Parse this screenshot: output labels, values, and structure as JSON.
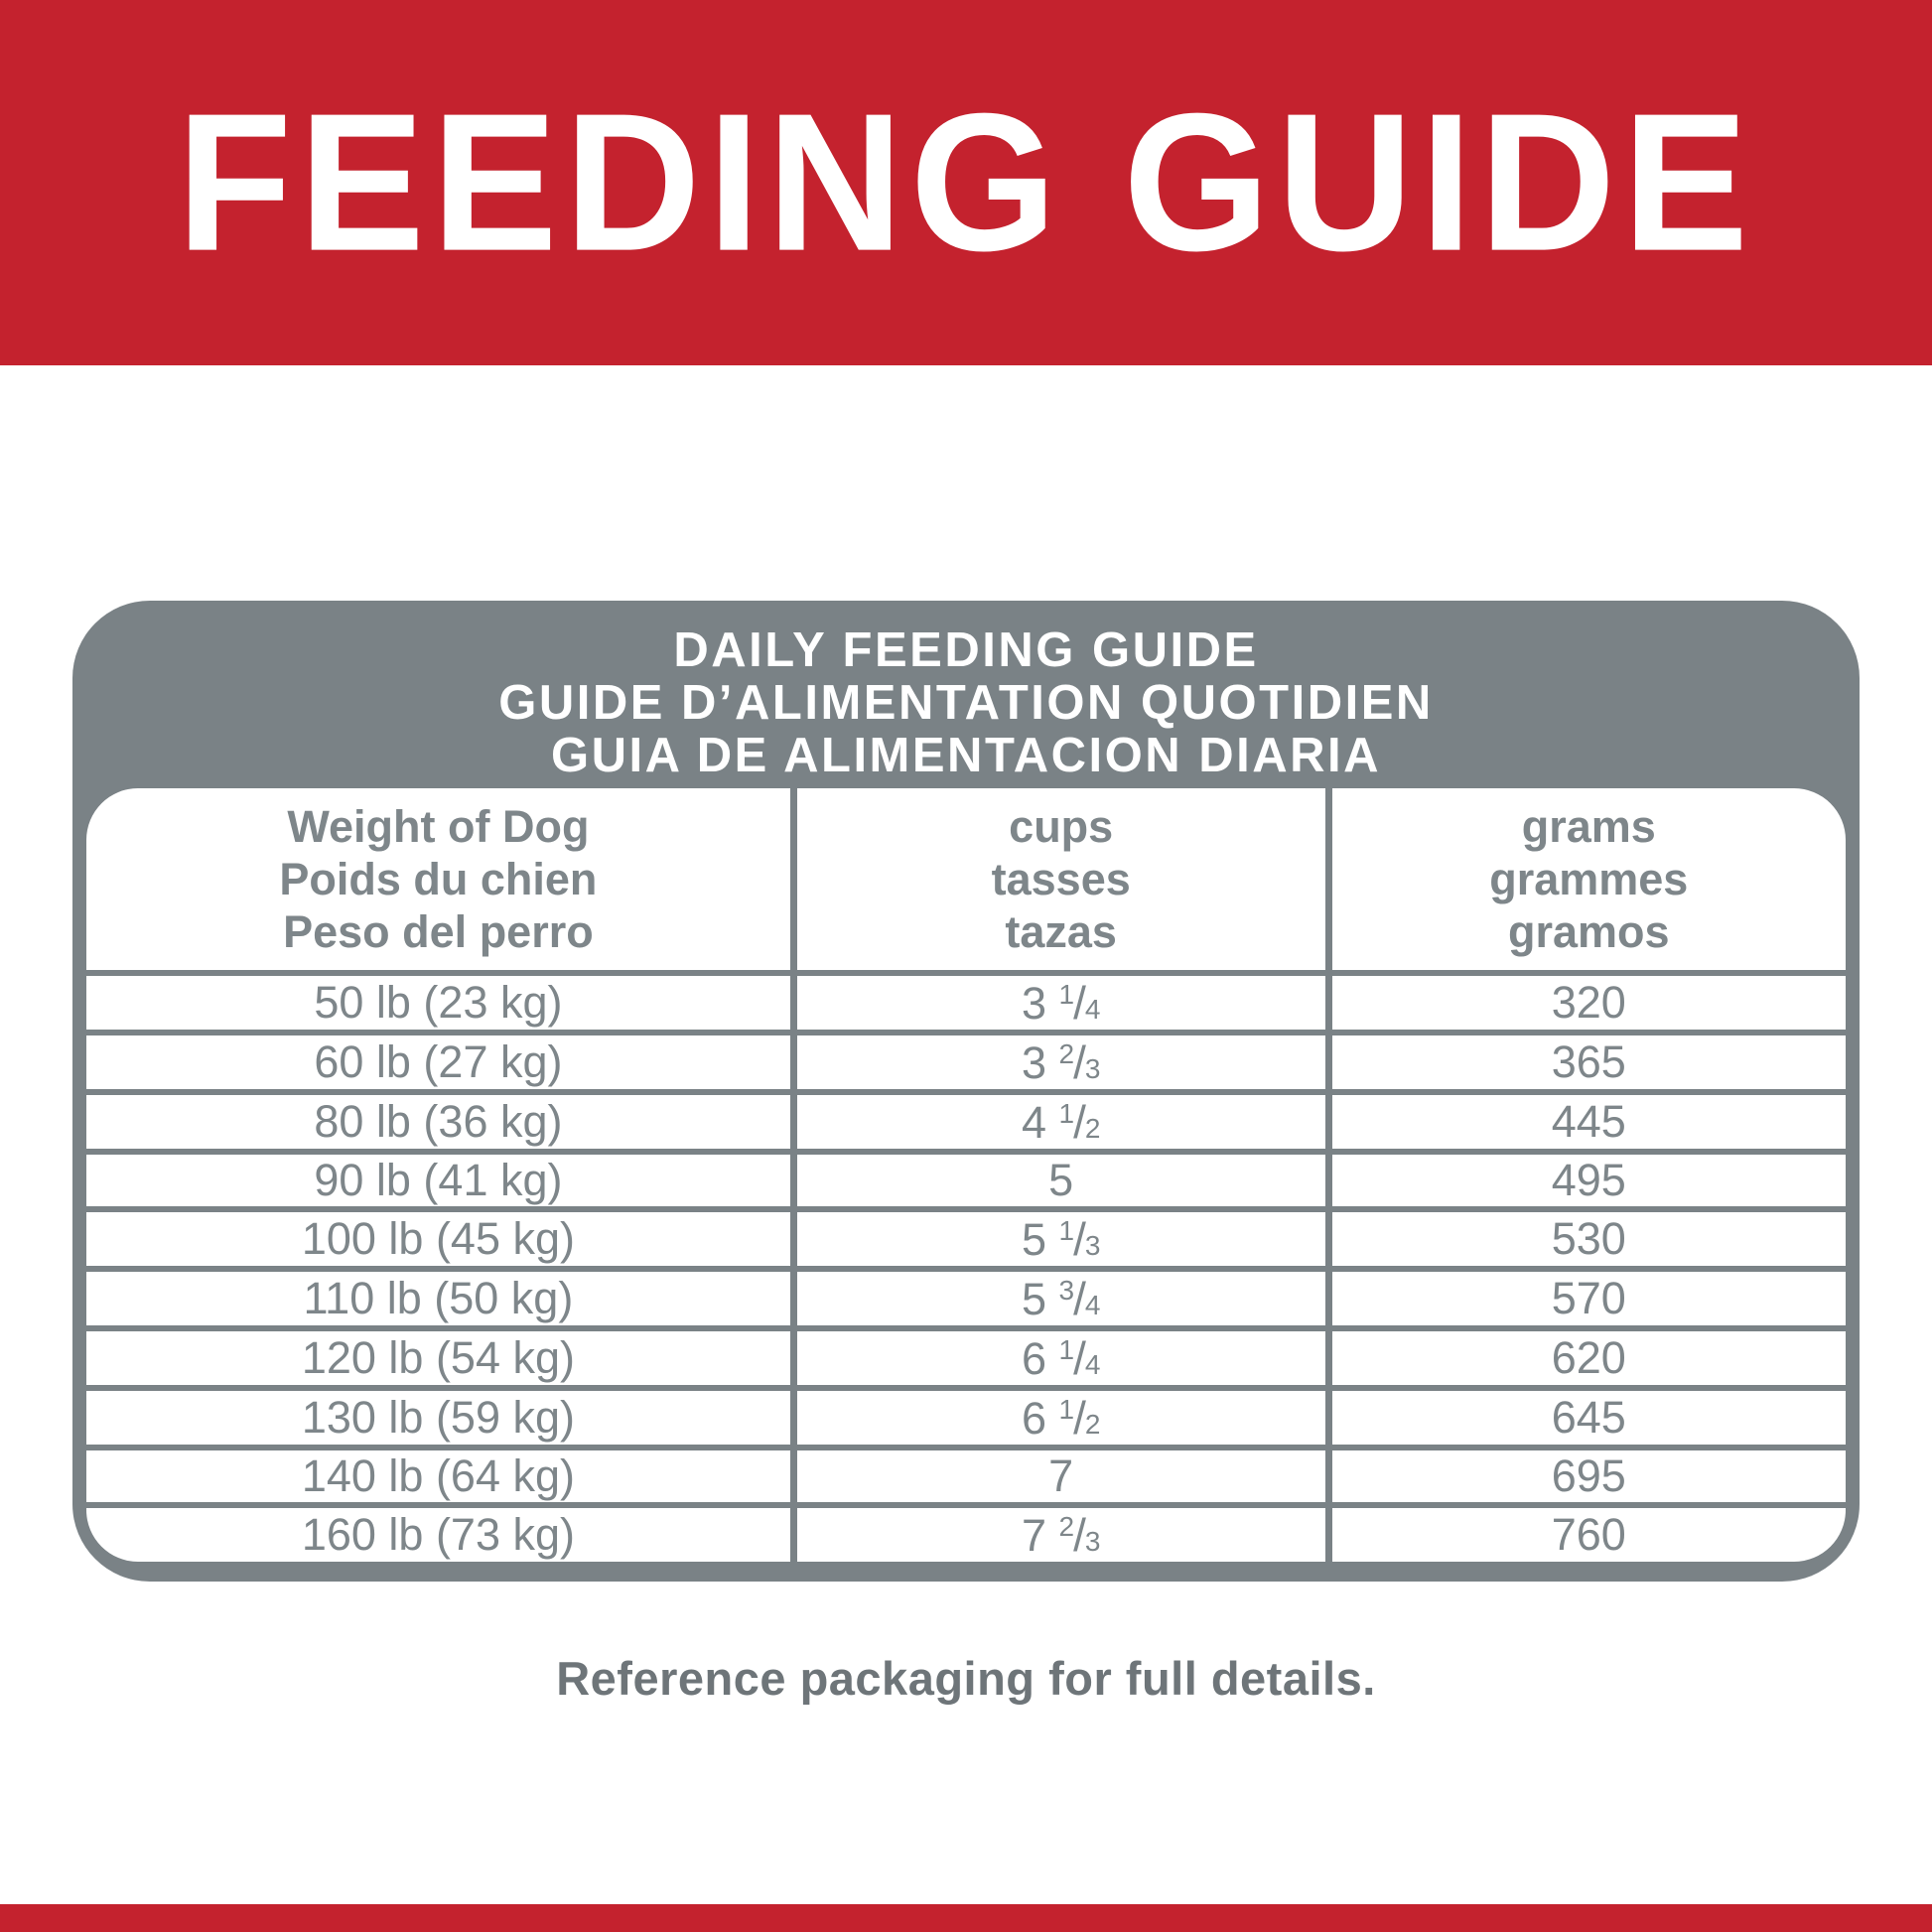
{
  "banner": {
    "title": "FEEDING GUIDE"
  },
  "card": {
    "title_lines": [
      "DAILY FEEDING GUIDE",
      "GUIDE D’ALIMENTATION QUOTIDIEN",
      "GUIA DE ALIMENTACION DIARIA"
    ]
  },
  "table": {
    "columns": [
      {
        "lines": [
          "Weight of Dog",
          "Poids du chien",
          "Peso del perro"
        ]
      },
      {
        "lines": [
          "cups",
          "tasses",
          "tazas"
        ]
      },
      {
        "lines": [
          "grams",
          "grammes",
          "gramos"
        ]
      }
    ],
    "rows": [
      {
        "weight": "50 lb (23 kg)",
        "cups": "3 1/4",
        "grams": "320"
      },
      {
        "weight": "60 lb (27 kg)",
        "cups": "3 2/3",
        "grams": "365"
      },
      {
        "weight": "80 lb (36 kg)",
        "cups": "4 1/2",
        "grams": "445"
      },
      {
        "weight": "90 lb (41 kg)",
        "cups": "5",
        "grams": "495"
      },
      {
        "weight": "100 lb (45 kg)",
        "cups": "5 1/3",
        "grams": "530"
      },
      {
        "weight": "110 lb (50 kg)",
        "cups": "5 3/4",
        "grams": "570"
      },
      {
        "weight": "120 lb (54 kg)",
        "cups": "6 1/4",
        "grams": "620"
      },
      {
        "weight": "130 lb (59 kg)",
        "cups": "6 1/2",
        "grams": "645"
      },
      {
        "weight": "140 lb (64 kg)",
        "cups": "7",
        "grams": "695"
      },
      {
        "weight": "160 lb (73 kg)",
        "cups": "7 2/3",
        "grams": "760"
      }
    ]
  },
  "footer": {
    "note": "Reference packaging for full details."
  },
  "colors": {
    "banner_red": "#c4222e",
    "card_gray": "#7a8286",
    "table_text_gray": "#7e868a",
    "note_gray": "#6e7579"
  }
}
